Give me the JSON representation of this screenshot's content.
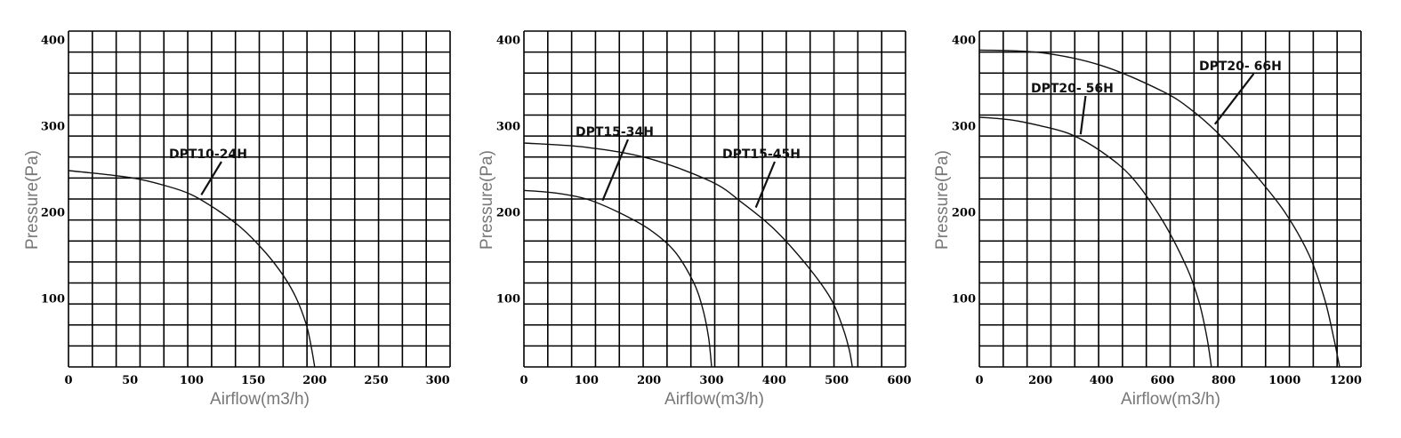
{
  "colors": {
    "grid": "#000000",
    "curve": "#111111",
    "axis_title": "#777777"
  },
  "chart_data": [
    {
      "type": "line",
      "xlabel": "Airflow(m3/h)",
      "ylabel": "Pressure(Pa)",
      "xlim": [
        0,
        310
      ],
      "ylim": [
        20,
        410
      ],
      "xticks": [
        0,
        50,
        100,
        150,
        200,
        250,
        300
      ],
      "yticks": [
        100,
        200,
        300,
        400
      ],
      "grid": true,
      "series": [
        {
          "name": "DPT10-24H",
          "x": [
            0,
            50,
            80,
            100,
            120,
            140,
            160,
            175,
            185,
            193,
            197,
            200
          ],
          "y": [
            248,
            240,
            230,
            220,
            203,
            182,
            153,
            125,
            100,
            70,
            45,
            20
          ]
        }
      ]
    },
    {
      "type": "line",
      "xlabel": "Airflow(m3/h)",
      "ylabel": "Pressure(Pa)",
      "xlim": [
        0,
        610
      ],
      "ylim": [
        20,
        410
      ],
      "xticks": [
        0,
        100,
        200,
        300,
        400,
        500,
        600
      ],
      "yticks": [
        100,
        200,
        300,
        400
      ],
      "grid": true,
      "series": [
        {
          "name": "DPT15-34H",
          "x": [
            0,
            50,
            100,
            150,
            200,
            240,
            270,
            285,
            295,
            300
          ],
          "y": [
            225,
            222,
            215,
            200,
            180,
            155,
            120,
            90,
            55,
            20
          ]
        },
        {
          "name": "DPT15-45H",
          "x": [
            0,
            100,
            200,
            300,
            350,
            400,
            450,
            490,
            510,
            520,
            525
          ],
          "y": [
            280,
            275,
            262,
            235,
            210,
            180,
            140,
            100,
            65,
            40,
            20
          ]
        }
      ]
    },
    {
      "type": "line",
      "xlabel": "Airflow(m3/h)",
      "ylabel": "Pressure(Pa)",
      "xlim": [
        0,
        1250
      ],
      "ylim": [
        20,
        410
      ],
      "xticks": [
        0,
        200,
        400,
        600,
        800,
        1000,
        1200
      ],
      "yticks": [
        100,
        200,
        300,
        400
      ],
      "grid": true,
      "series": [
        {
          "name": "DPT20- 56H",
          "x": [
            0,
            100,
            200,
            300,
            400,
            500,
            600,
            680,
            720,
            745,
            760
          ],
          "y": [
            310,
            307,
            300,
            290,
            270,
            240,
            190,
            135,
            95,
            55,
            20
          ]
        },
        {
          "name": "DPT20- 66H",
          "x": [
            0,
            200,
            400,
            600,
            700,
            800,
            900,
            1000,
            1080,
            1130,
            1160,
            1180
          ],
          "y": [
            388,
            385,
            370,
            340,
            317,
            285,
            245,
            200,
            150,
            100,
            55,
            20
          ]
        }
      ]
    }
  ]
}
